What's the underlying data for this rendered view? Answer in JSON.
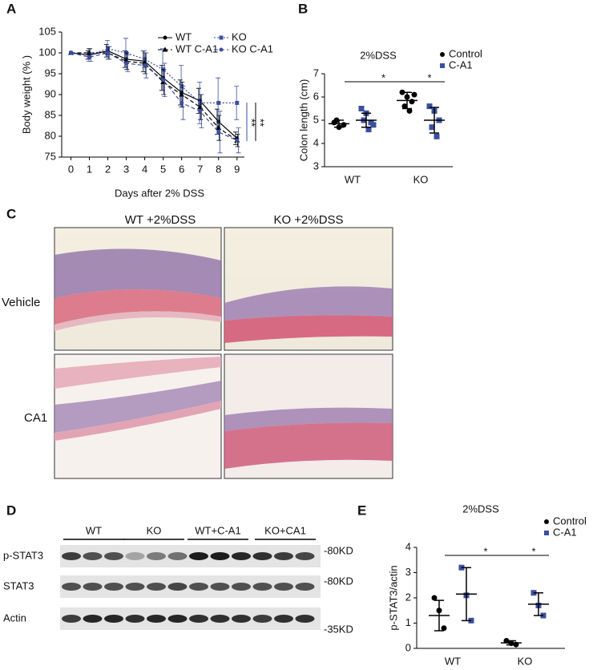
{
  "panel_labels": [
    "A",
    "B",
    "C",
    "D",
    "E"
  ],
  "chart_data": [
    {
      "type": "line",
      "ylabel": "Body weight (% )",
      "xlabel": "Days after 2% DSS",
      "x": [
        0,
        1,
        2,
        3,
        4,
        5,
        6,
        7,
        8,
        9
      ],
      "xlim": [
        -0.5,
        9.4
      ],
      "xticks": [
        0,
        1,
        2,
        3,
        4,
        5,
        6,
        7,
        8,
        9
      ],
      "ylim": [
        75,
        105
      ],
      "yticks": [
        75,
        80,
        85,
        90,
        95,
        100,
        105
      ],
      "legend": "top-right",
      "series": [
        {
          "name": "WT",
          "color": "#000000",
          "marker": "circle",
          "dash": "solid",
          "values": [
            100,
            99.5,
            100.5,
            98.5,
            98,
            94,
            90.5,
            88.5,
            83.5,
            79.5
          ],
          "errors": [
            0,
            1,
            1.5,
            2,
            2.5,
            3,
            3,
            3,
            3,
            1.5
          ]
        },
        {
          "name": "KO",
          "color": "#3b4fa0",
          "marker": "square",
          "dash": "dotted",
          "values": [
            100,
            99.5,
            101,
            100,
            98.5,
            96,
            92,
            88,
            88,
            88
          ],
          "errors": [
            0,
            1.5,
            2,
            3.5,
            2,
            5,
            5,
            5,
            6,
            4
          ]
        },
        {
          "name": "WT C-A1",
          "color": "#000000",
          "marker": "triangle",
          "dash": "dashed",
          "values": [
            100,
            100,
            100,
            98,
            97.5,
            93,
            90,
            87,
            82,
            79
          ],
          "errors": [
            0,
            1,
            1.5,
            2,
            2.5,
            3,
            3,
            3,
            3,
            1.5
          ]
        },
        {
          "name": "KO C-A1",
          "color": "#3b4fa0",
          "marker": "circle",
          "dash": "dashed",
          "values": [
            100,
            99,
            100,
            97.5,
            97,
            93.5,
            88,
            86,
            81,
            79
          ],
          "errors": [
            0,
            1,
            1.5,
            2,
            3,
            4,
            4,
            4,
            5,
            3
          ]
        }
      ],
      "annotations": [
        {
          "text": "**",
          "color": "#3b4fa0"
        },
        {
          "text": "**",
          "color": "#000000"
        }
      ]
    },
    {
      "type": "dot",
      "title": "2%DSS",
      "ylabel": "Colon length (cm)",
      "categories": [
        "WT",
        "KO"
      ],
      "ylim": [
        3,
        7
      ],
      "yticks": [
        3,
        4,
        5,
        6,
        7
      ],
      "legend": "top-right",
      "series": [
        {
          "name": "Control",
          "color": "#000000",
          "marker": "circle",
          "values": [
            [
              4.9,
              4.7,
              4.8,
              5.0
            ],
            [
              6.2,
              6.0,
              5.8,
              5.6,
              5.4,
              6.1
            ]
          ],
          "mean": [
            4.85,
            5.85
          ],
          "sd": [
            0.15,
            0.35
          ]
        },
        {
          "name": "C-A1",
          "color": "#3b4fa0",
          "marker": "square",
          "values": [
            [
              5.5,
              5.3,
              4.9,
              5.0,
              4.6,
              4.8
            ],
            [
              5.6,
              5.4,
              5.0,
              4.7,
              4.3
            ]
          ],
          "mean": [
            5.0,
            5.0
          ],
          "sd": [
            0.3,
            0.55
          ]
        }
      ],
      "annotations": [
        "*",
        "*"
      ]
    },
    {
      "type": "dot",
      "title": "2%DSS",
      "ylabel": "p-STAT3/actin",
      "categories": [
        "WT",
        "KO"
      ],
      "ylim": [
        0,
        4
      ],
      "yticks": [
        0,
        1,
        2,
        3,
        4
      ],
      "legend": "top-right",
      "series": [
        {
          "name": "Control",
          "color": "#000000",
          "marker": "circle",
          "values": [
            [
              2.0,
              1.5,
              0.8
            ],
            [
              0.3,
              0.2,
              0.15
            ]
          ],
          "mean": [
            1.3,
            0.22
          ],
          "sd": [
            0.6,
            0.08
          ]
        },
        {
          "name": "C-A1",
          "color": "#3b4fa0",
          "marker": "square",
          "values": [
            [
              3.2,
              2.1,
              1.1
            ],
            [
              2.2,
              1.7,
              1.3
            ]
          ],
          "mean": [
            2.15,
            1.75
          ],
          "sd": [
            1.05,
            0.45
          ]
        }
      ],
      "annotations": [
        "*",
        "*"
      ]
    }
  ],
  "histology": {
    "columns": [
      "WT +2%DSS",
      "KO +2%DSS"
    ],
    "rows": [
      "Vehicle",
      "CA1"
    ]
  },
  "blot": {
    "groups": [
      "WT",
      "KO",
      "WT+C-A1",
      "KO+CA1"
    ],
    "rows": [
      "p-STAT3",
      "STAT3",
      "Actin"
    ],
    "markers": [
      "-80KD",
      "-80KD",
      "-35KD"
    ]
  }
}
